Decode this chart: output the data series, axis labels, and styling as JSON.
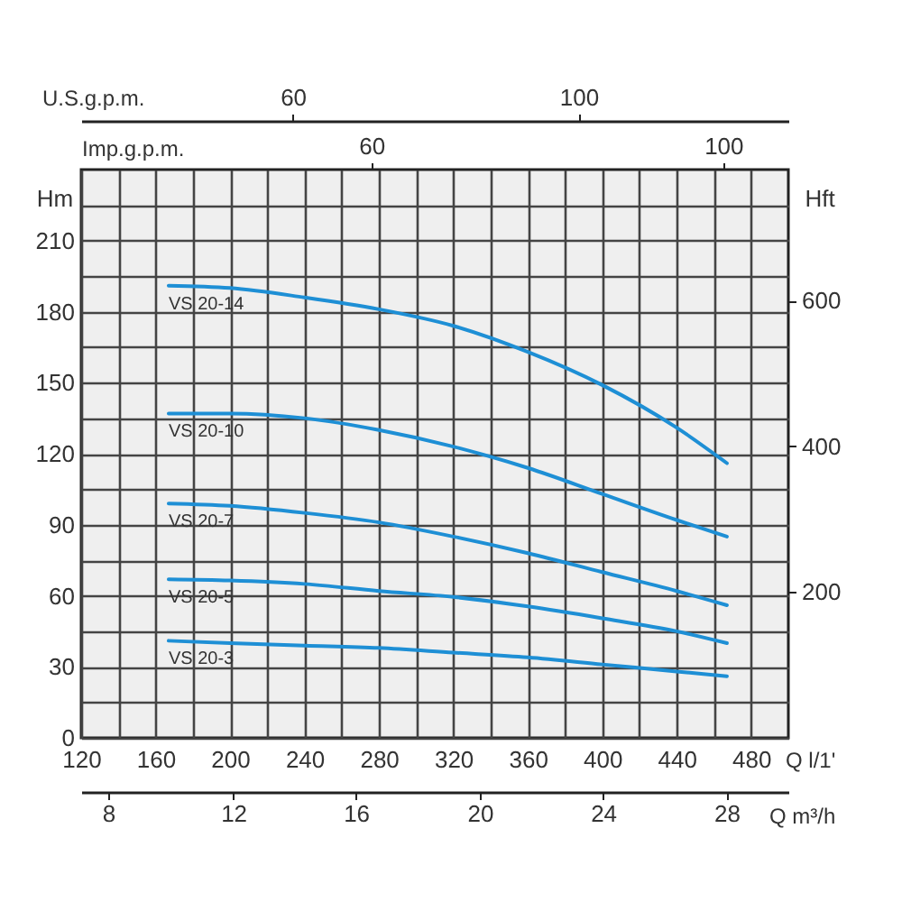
{
  "chart_data": {
    "type": "line",
    "xlabel": "Q l/1'",
    "ylabel": "Hm",
    "y2label": "Hft",
    "x2label": "Imp.g.p.m.",
    "annotations": [
      "U.S.g.p.m.",
      "60",
      "100",
      "Q m³/h",
      "8",
      "12",
      "16",
      "20",
      "24",
      "28"
    ],
    "x": [
      167,
      200,
      240,
      280,
      320,
      360,
      400,
      440,
      467
    ],
    "series": [
      {
        "name": "VS 20-14",
        "color": "#1e8fd5",
        "values": [
          191,
          190,
          186,
          181,
          174,
          163,
          149,
          131,
          116
        ]
      },
      {
        "name": "VS 20-10",
        "color": "#1e8fd5",
        "values": [
          137,
          137,
          135,
          130,
          123,
          114,
          103,
          92,
          85
        ]
      },
      {
        "name": "VS 20-7",
        "color": "#1e8fd5",
        "values": [
          99,
          98,
          95,
          91,
          85,
          78,
          70,
          62,
          56
        ]
      },
      {
        "name": "VS 20-5",
        "color": "#1e8fd5",
        "values": [
          67,
          66.5,
          65,
          62,
          59.5,
          55.5,
          50.5,
          45,
          40
        ]
      },
      {
        "name": "VS 20-3",
        "color": "#1e8fd5",
        "values": [
          41,
          40,
          39,
          38,
          36,
          34,
          31,
          28,
          26
        ]
      }
    ],
    "xlim": [
      120,
      500
    ],
    "xticks": [
      120,
      {
        "value": 140,
        "label": null
      },
      160,
      {
        "value": 180,
        "label": null
      },
      200,
      {
        "value": 220,
        "label": null
      },
      240,
      {
        "value": 260,
        "label": null
      },
      280,
      {
        "value": 300,
        "label": null
      },
      320,
      {
        "value": 340,
        "label": null
      },
      360,
      {
        "value": 380,
        "label": null
      },
      400,
      {
        "value": 420,
        "label": null
      },
      440,
      {
        "value": 460,
        "label": null
      },
      480
    ],
    "ylim": [
      0,
      240
    ],
    "yticks": [
      0,
      {
        "value": 15,
        "label": null
      },
      30,
      {
        "value": 45,
        "label": null
      },
      60,
      {
        "value": 75,
        "label": null
      },
      90,
      {
        "value": 105,
        "label": null
      },
      120,
      {
        "value": 135,
        "label": null
      },
      150,
      {
        "value": 165,
        "label": null
      },
      180,
      {
        "value": 195,
        "label": null
      },
      210,
      {
        "value": 225,
        "label": null
      }
    ],
    "y2lim": [
      0,
      780
    ],
    "y2ticks": [
      200,
      400,
      600
    ],
    "x2lim": [
      27,
      107.4
    ],
    "x2ticks": [
      60,
      100
    ],
    "grid": true,
    "line_style": "solid"
  }
}
